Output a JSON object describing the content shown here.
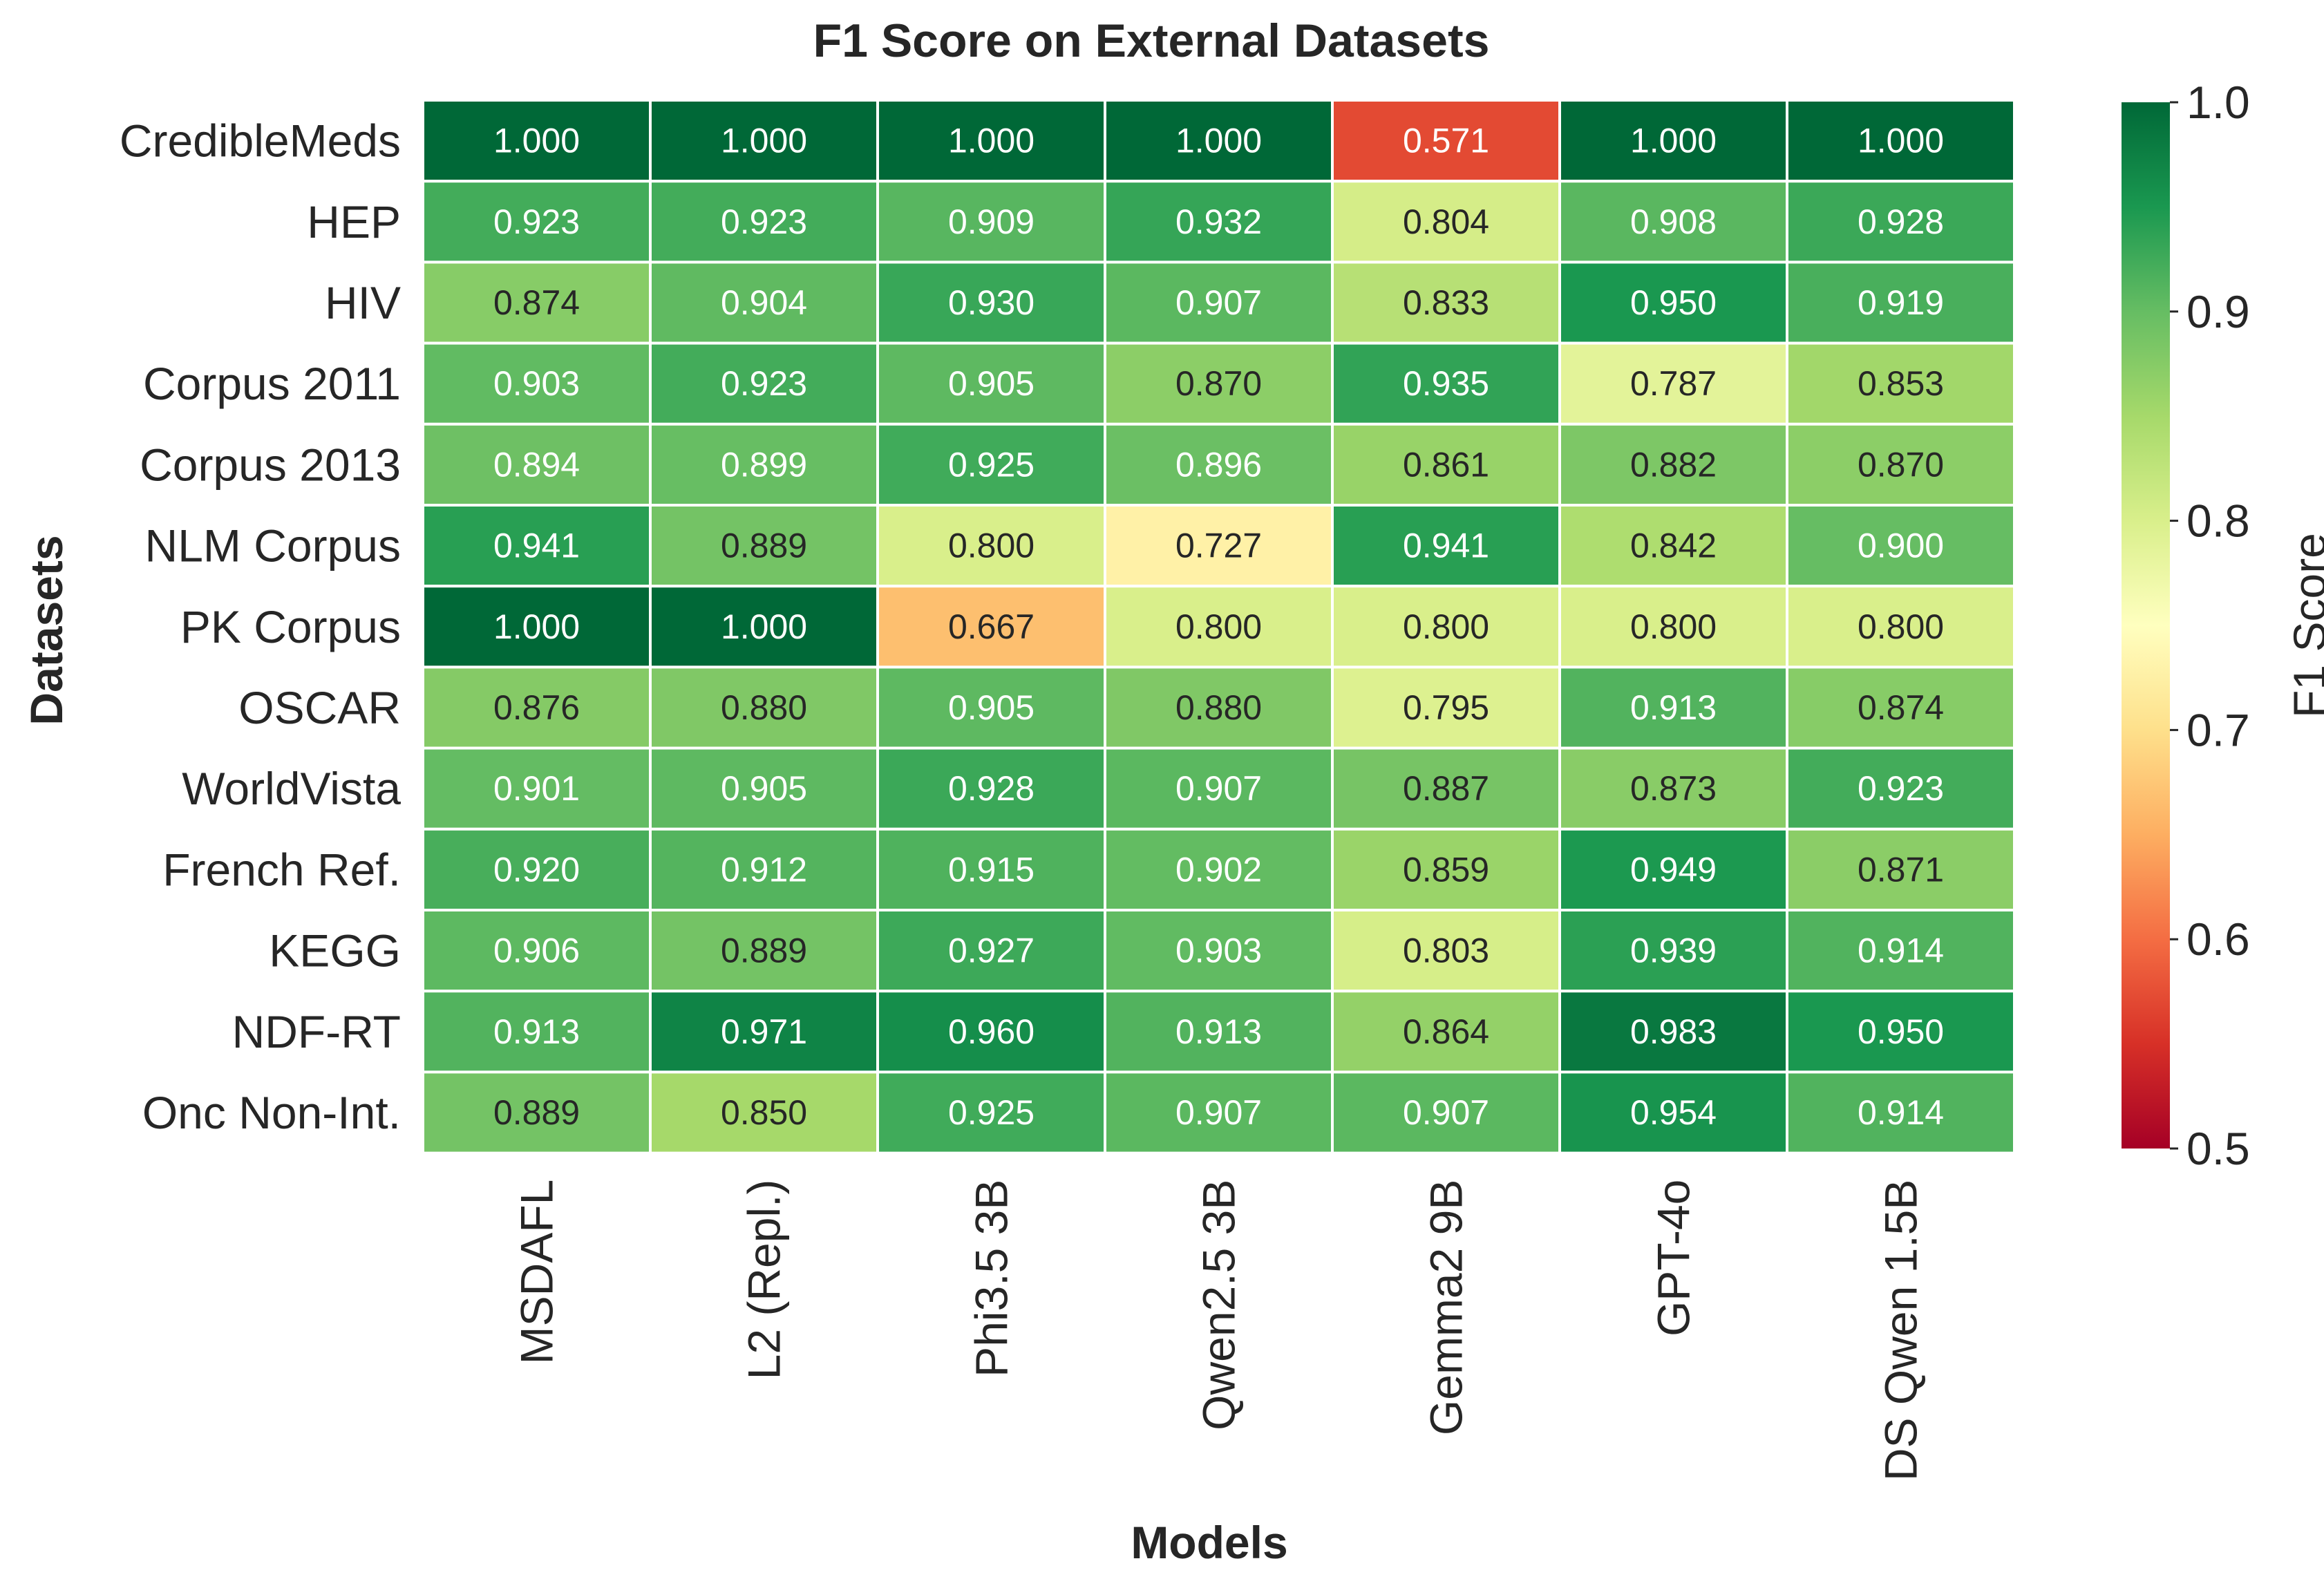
{
  "chart_data": {
    "type": "heatmap",
    "title": "F1 Score on External Datasets",
    "xlabel": "Models",
    "ylabel": "Datasets",
    "columns": [
      "MSDAFL",
      "L2 (Repl.)",
      "Phi3.5 3B",
      "Qwen2.5 3B",
      "Gemma2 9B",
      "GPT-4o",
      "DS Qwen 1.5B"
    ],
    "rows": [
      "CredibleMeds",
      "HEP",
      "HIV",
      "Corpus 2011",
      "Corpus 2013",
      "NLM Corpus",
      "PK Corpus",
      "OSCAR",
      "WorldVista",
      "French Ref.",
      "KEGG",
      "NDF-RT",
      "Onc Non-Int."
    ],
    "values": [
      [
        1.0,
        1.0,
        1.0,
        1.0,
        0.571,
        1.0,
        1.0
      ],
      [
        0.923,
        0.923,
        0.909,
        0.932,
        0.804,
        0.908,
        0.928
      ],
      [
        0.874,
        0.904,
        0.93,
        0.907,
        0.833,
        0.95,
        0.919
      ],
      [
        0.903,
        0.923,
        0.905,
        0.87,
        0.935,
        0.787,
        0.853
      ],
      [
        0.894,
        0.899,
        0.925,
        0.896,
        0.861,
        0.882,
        0.87
      ],
      [
        0.941,
        0.889,
        0.8,
        0.727,
        0.941,
        0.842,
        0.9
      ],
      [
        1.0,
        1.0,
        0.667,
        0.8,
        0.8,
        0.8,
        0.8
      ],
      [
        0.876,
        0.88,
        0.905,
        0.88,
        0.795,
        0.913,
        0.874
      ],
      [
        0.901,
        0.905,
        0.928,
        0.907,
        0.887,
        0.873,
        0.923
      ],
      [
        0.92,
        0.912,
        0.915,
        0.902,
        0.859,
        0.949,
        0.871
      ],
      [
        0.906,
        0.889,
        0.927,
        0.903,
        0.803,
        0.939,
        0.914
      ],
      [
        0.913,
        0.971,
        0.96,
        0.913,
        0.864,
        0.983,
        0.95
      ],
      [
        0.889,
        0.85,
        0.925,
        0.907,
        0.907,
        0.954,
        0.914
      ]
    ],
    "value_format": "3 decimals",
    "colormap": "RdYlGn",
    "colorbar": {
      "label": "F1 Score",
      "range": [
        0.5,
        1.0
      ],
      "ticks": [
        "0.5",
        "0.6",
        "0.7",
        "0.8",
        "0.9",
        "1.0"
      ],
      "placement": "right"
    },
    "grid": false
  },
  "colors": {
    "cell_border": "#ffffff",
    "text_dark": "#262626",
    "text_light": "#ffffff"
  }
}
